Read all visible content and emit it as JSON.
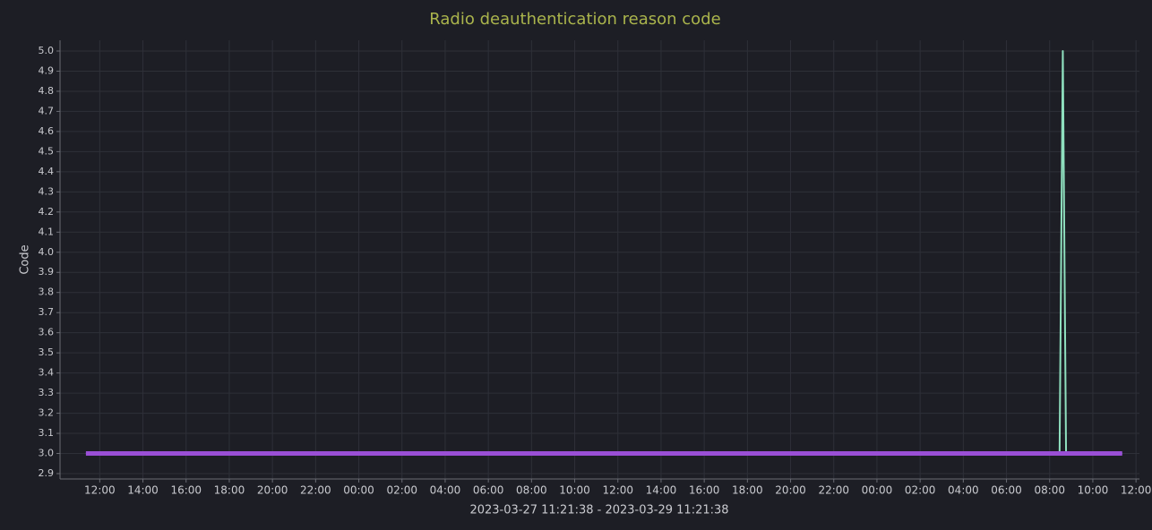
{
  "chart_data": {
    "type": "line",
    "title": "Radio deauthentication reason code",
    "y_label": "Code",
    "x_label": "2023-03-27 11:21:38 - 2023-03-29 11:21:38",
    "xlim": [
      -1.2,
      48.8
    ],
    "xticks": [
      {
        "value": 0.64,
        "label": "12:00"
      },
      {
        "value": 2.64,
        "label": "14:00"
      },
      {
        "value": 4.64,
        "label": "16:00"
      },
      {
        "value": 6.64,
        "label": "18:00"
      },
      {
        "value": 8.64,
        "label": "20:00"
      },
      {
        "value": 10.64,
        "label": "22:00"
      },
      {
        "value": 12.64,
        "label": "00:00"
      },
      {
        "value": 14.64,
        "label": "02:00"
      },
      {
        "value": 16.64,
        "label": "04:00"
      },
      {
        "value": 18.64,
        "label": "06:00"
      },
      {
        "value": 20.64,
        "label": "08:00"
      },
      {
        "value": 22.64,
        "label": "10:00"
      },
      {
        "value": 24.64,
        "label": "12:00"
      },
      {
        "value": 26.64,
        "label": "14:00"
      },
      {
        "value": 28.64,
        "label": "16:00"
      },
      {
        "value": 30.64,
        "label": "18:00"
      },
      {
        "value": 32.64,
        "label": "20:00"
      },
      {
        "value": 34.64,
        "label": "22:00"
      },
      {
        "value": 36.64,
        "label": "00:00"
      },
      {
        "value": 38.64,
        "label": "02:00"
      },
      {
        "value": 40.64,
        "label": "04:00"
      },
      {
        "value": 42.64,
        "label": "06:00"
      },
      {
        "value": 44.64,
        "label": "08:00"
      },
      {
        "value": 46.64,
        "label": "10:00"
      },
      {
        "value": 48.64,
        "label": "12:00"
      }
    ],
    "ylim": [
      2.9,
      5.0
    ],
    "yticks": [
      2.9,
      {
        "value": 3,
        "label": "3.0"
      },
      3.1,
      3.2,
      3.3,
      3.4,
      3.5,
      3.6,
      3.7,
      3.8,
      3.9,
      {
        "value": 4,
        "label": "4.0"
      },
      4.1,
      4.2,
      4.3,
      4.4,
      4.5,
      4.6,
      4.7,
      4.8,
      4.9,
      {
        "value": 5,
        "label": "5.0"
      }
    ],
    "grid": true,
    "series": [
      {
        "color": "#8fe0bf",
        "x": [
          0,
          45.1,
          45.25,
          45.4,
          48
        ],
        "values": [
          3,
          3,
          5,
          3,
          3
        ]
      },
      {
        "color": "#9a4fd6",
        "x": [
          0,
          48
        ],
        "values": [
          3,
          3
        ]
      }
    ]
  }
}
